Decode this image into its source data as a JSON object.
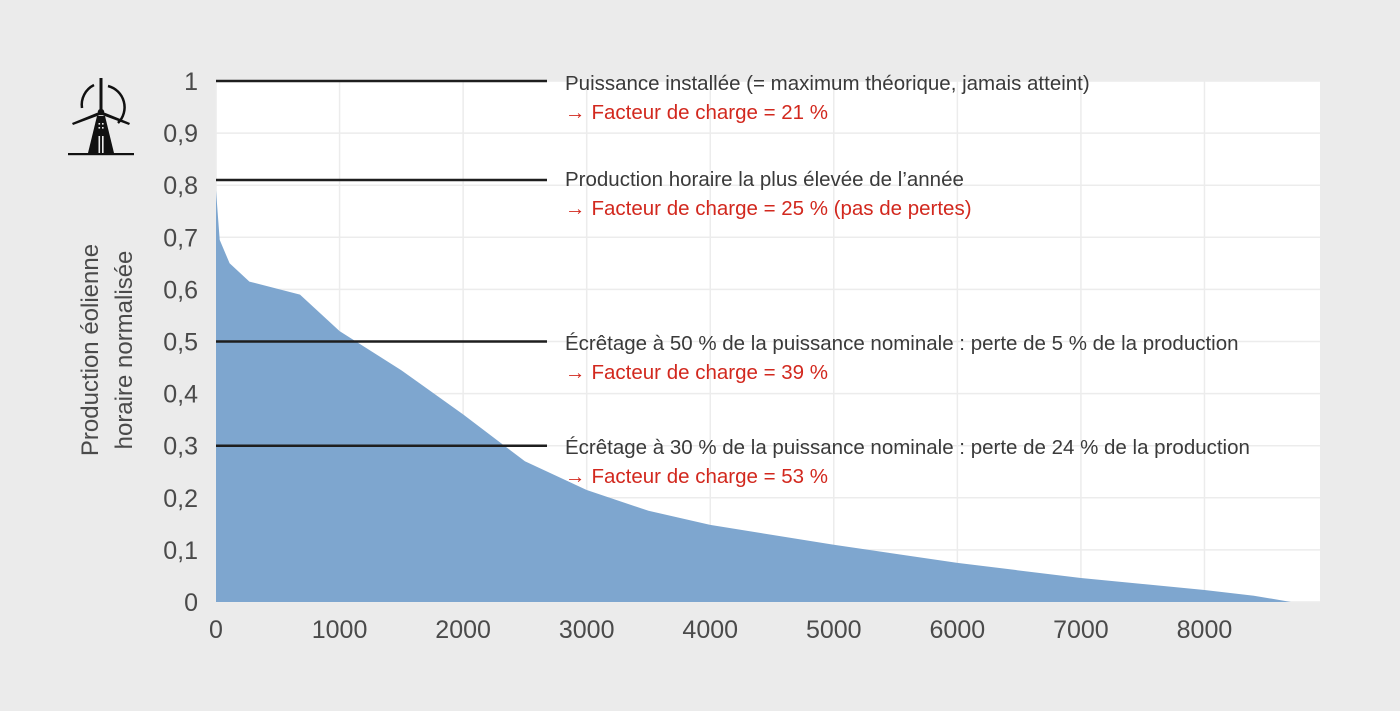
{
  "chart_data": {
    "type": "area",
    "title": "",
    "xlabel": "",
    "ylabel": "Production éolienne horaire normalisée",
    "ylabel_lines": [
      "Production éolienne",
      "horaire normalisée"
    ],
    "xlim": [
      0,
      8935
    ],
    "ylim": [
      0,
      1
    ],
    "grid": true,
    "x_ticks": [
      0,
      1000,
      2000,
      3000,
      4000,
      5000,
      6000,
      7000,
      8000
    ],
    "x_tick_labels": [
      "0",
      "1000",
      "2000",
      "3000",
      "4000",
      "5000",
      "6000",
      "7000",
      "8000"
    ],
    "y_ticks": [
      0,
      0.1,
      0.2,
      0.3,
      0.4,
      0.5,
      0.6,
      0.7,
      0.8,
      0.9,
      1
    ],
    "y_tick_labels": [
      "0",
      "0,1",
      "0,2",
      "0,3",
      "0,4",
      "0,5",
      "0,6",
      "0,7",
      "0,8",
      "0,9",
      "1"
    ],
    "fill_color": "#7ea6cf",
    "series": [
      {
        "name": "Production éolienne horaire normalisée (courbe monotone)",
        "x": [
          0,
          30,
          110,
          270,
          680,
          1000,
          1500,
          2000,
          2500,
          3000,
          3500,
          4000,
          5000,
          6000,
          7000,
          8000,
          8400,
          8700
        ],
        "values": [
          0.79,
          0.695,
          0.65,
          0.615,
          0.59,
          0.52,
          0.445,
          0.36,
          0.27,
          0.215,
          0.175,
          0.148,
          0.11,
          0.075,
          0.046,
          0.023,
          0.012,
          0.0
        ]
      }
    ],
    "reference_lines": [
      {
        "y": 1.0,
        "label": "Puissance installée (= maximum théorique, jamais atteint)",
        "result": "Facteur de charge = 21 %"
      },
      {
        "y": 0.81,
        "label": "Production horaire la plus élevée de l’année",
        "result": "Facteur de charge = 25 % (pas de pertes)"
      },
      {
        "y": 0.5,
        "label": "Écrêtage à 50 % de la puissance nominale : perte de 5 % de la production",
        "result": "Facteur de charge = 39 %"
      },
      {
        "y": 0.3,
        "label": "Écrêtage à 30 % de la puissance nominale : perte de 24 % de la production",
        "result": "Facteur de charge = 53 %"
      }
    ]
  },
  "icon": "wind-turbine-icon",
  "colors": {
    "background": "#ebebeb",
    "plot_bg": "#ffffff",
    "area": "#7ea6cf",
    "annotation_main": "#3a3a3a",
    "annotation_accent": "#d2281e",
    "reference_line": "#1e1e1e"
  },
  "annotations": [
    {
      "main": "Puissance installée (= maximum théorique, jamais atteint)",
      "arrow": "→",
      "sub": "Facteur de charge = 21 %"
    },
    {
      "main": "Production horaire la plus élevée de l’année",
      "arrow": "→",
      "sub": "Facteur de charge = 25 % (pas de pertes)"
    },
    {
      "main": "Écrêtage à 50 % de la puissance nominale : perte de 5 % de la production",
      "arrow": "→",
      "sub": "Facteur de charge = 39 %"
    },
    {
      "main": "Écrêtage à 30 % de la puissance nominale : perte de 24 % de la production",
      "arrow": "→",
      "sub": "Facteur de charge = 53 %"
    }
  ]
}
